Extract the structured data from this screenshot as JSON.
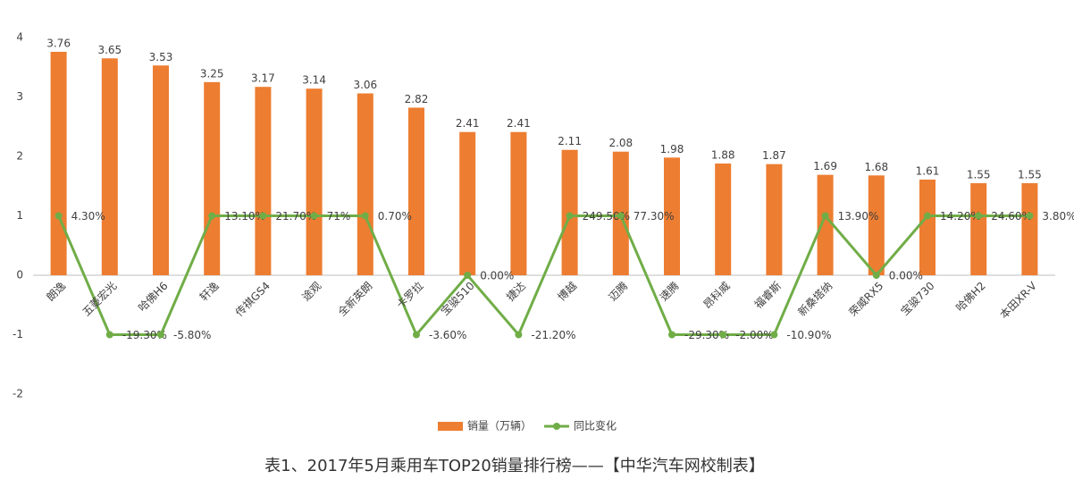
{
  "chart_data": {
    "type": "bar-line",
    "title": "表1、2017年5月乘用车TOP20销量排行榜——【中华汽车网校制表】",
    "categories": [
      "朗逸",
      "五菱宏光",
      "哈佛H6",
      "轩逸",
      "传祺GS4",
      "途观",
      "全新英朗",
      "卡罗拉",
      "宝骏510",
      "捷达",
      "博越",
      "迈腾",
      "速腾",
      "昂科威",
      "福睿斯",
      "新桑塔纳",
      "荣威RX5",
      "宝骏730",
      "哈佛H2",
      "本田XR-V"
    ],
    "series": [
      {
        "name": "销量（万辆）",
        "type": "bar",
        "color": "#ed7d31",
        "values": [
          3.76,
          3.65,
          3.53,
          3.25,
          3.17,
          3.14,
          3.06,
          2.82,
          2.41,
          2.41,
          2.11,
          2.08,
          1.98,
          1.88,
          1.87,
          1.69,
          1.68,
          1.61,
          1.55,
          1.55
        ]
      },
      {
        "name": "同比变化",
        "type": "line",
        "color": "#70ad47",
        "values": [
          1,
          -1,
          -1,
          1,
          1,
          1,
          1,
          -1,
          0,
          -1,
          1,
          1,
          -1,
          -1,
          -1,
          1,
          0,
          1,
          1,
          1
        ],
        "labels": [
          "4.30%",
          "-19.30%",
          "-5.80%",
          "13.10%",
          "21.70%",
          "71%",
          "0.70%",
          "-3.60%",
          "0.00%",
          "-21.20%",
          "249.50%",
          "77.30%",
          "-29.30%",
          "-2.00%",
          "-10.90%",
          "13.90%",
          "0.00%",
          "14.20%",
          "24.60%",
          "3.80%"
        ]
      }
    ],
    "ylim": [
      -2,
      4
    ],
    "yticks": [
      -2,
      -1,
      0,
      1,
      2,
      3,
      4
    ],
    "grid": false,
    "legend": "bottom"
  }
}
